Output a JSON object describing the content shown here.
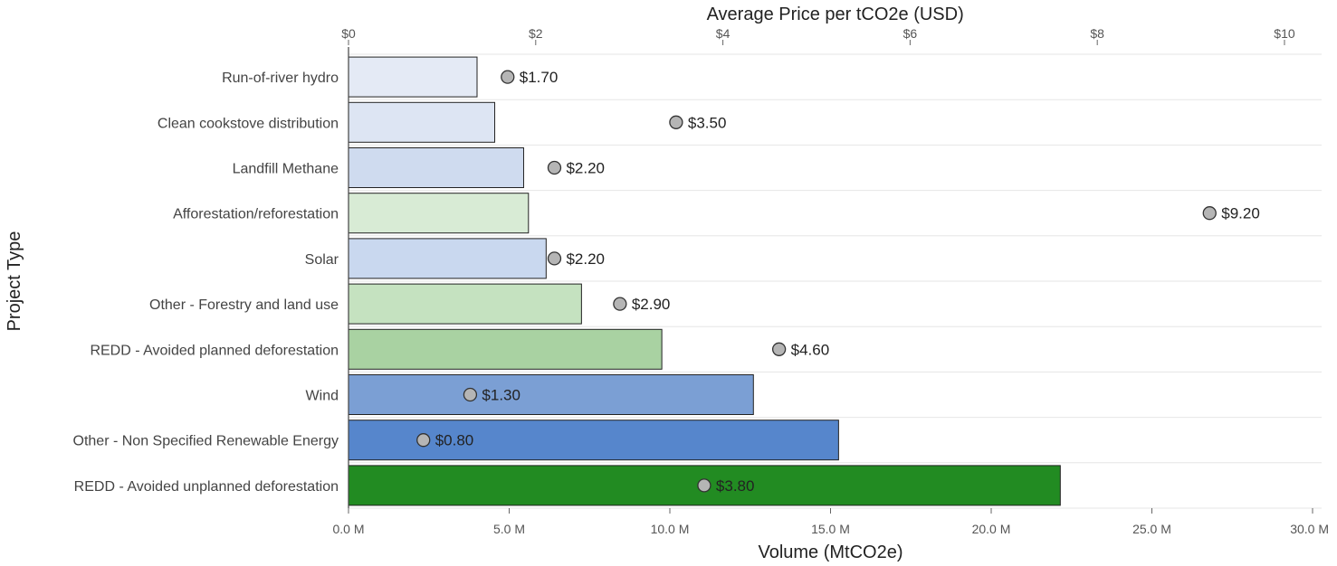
{
  "chart_data": {
    "type": "bar",
    "orientation": "horizontal",
    "ylabel": "Project Type",
    "x_bottom": {
      "label": "Volume (MtCO2e)",
      "range": [
        0,
        30
      ],
      "ticks": [
        0,
        5,
        10,
        15,
        20,
        25,
        30
      ],
      "tick_labels": [
        "0.0 M",
        "5.0 M",
        "10.0 M",
        "15.0 M",
        "20.0 M",
        "25.0 M",
        "30.0 M"
      ]
    },
    "x_top": {
      "label": "Average Price per tCO2e (USD)",
      "range": [
        0,
        10.3
      ],
      "ticks": [
        0,
        2,
        4,
        6,
        8,
        10
      ],
      "tick_labels": [
        "$0",
        "$2",
        "$4",
        "$6",
        "$8",
        "$10"
      ]
    },
    "grid": "horizontal lines between categories",
    "categories": [
      "Run-of-river hydro",
      "Clean cookstove distribution",
      "Landfill Methane",
      "Afforestation/reforestation",
      "Solar",
      "Other - Forestry and land use",
      "REDD - Avoided planned deforestation",
      "Wind",
      "Other - Non Specified Renewable Energy",
      "REDD - Avoided unplanned deforestation"
    ],
    "series": [
      {
        "name": "Volume (MtCO2e)",
        "kind": "bar",
        "axis": "bottom",
        "values": [
          4.0,
          4.55,
          5.45,
          5.6,
          6.15,
          7.25,
          9.75,
          12.6,
          15.25,
          22.15
        ],
        "colors": [
          "#e4eaf5",
          "#dde5f3",
          "#cfdbef",
          "#d8ebd5",
          "#c9d8ef",
          "#c5e2c0",
          "#a9d2a2",
          "#7b9fd4",
          "#5686cc",
          "#228b22"
        ]
      },
      {
        "name": "Average Price per tCO2e (USD)",
        "kind": "point",
        "axis": "top",
        "values": [
          1.7,
          3.5,
          2.2,
          9.2,
          2.2,
          2.9,
          4.6,
          1.3,
          0.8,
          3.8
        ],
        "labels": [
          "$1.70",
          "$3.50",
          "$2.20",
          "$9.20",
          "$2.20",
          "$2.90",
          "$4.60",
          "$1.30",
          "$0.80",
          "$3.80"
        ]
      }
    ]
  }
}
